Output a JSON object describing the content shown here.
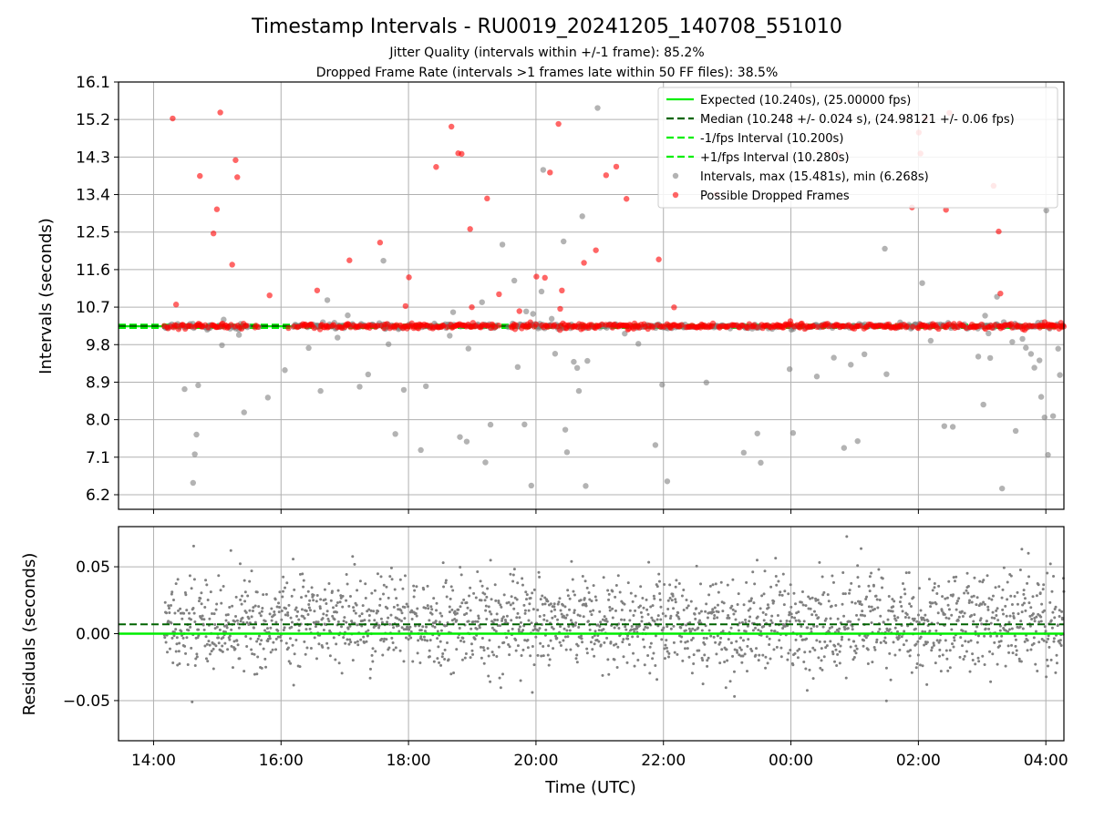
{
  "colors": {
    "expected": "#00ee00",
    "median": "#006400",
    "fps_band": "#00ee00",
    "intervals": "#808080",
    "dropped": "#ff0000",
    "residuals": "#808080",
    "grid": "#b0b0b0"
  },
  "chart_data": [
    {
      "type": "scatter",
      "title": "Timestamp Intervals - RU0019_20241205_140708_551010",
      "subtitle_lines": [
        "Jitter Quality (intervals within +/-1 frame): 85.2%",
        "Dropped Frame Rate (intervals >1 frames late within 50 FF files): 38.5%"
      ],
      "xlabel": "",
      "ylabel": "Intervals (seconds)",
      "xlim": [
        "13:27",
        "04:17"
      ],
      "ylim": [
        5.85,
        16.1
      ],
      "x_ticks": [
        "14:00",
        "16:00",
        "18:00",
        "20:00",
        "22:00",
        "00:00",
        "02:00",
        "04:00"
      ],
      "y_ticks": [
        "6.2",
        "7.1",
        "8.0",
        "8.9",
        "9.8",
        "10.7",
        "11.6",
        "12.5",
        "13.4",
        "14.3",
        "15.2",
        "16.1"
      ],
      "grid": true,
      "legend_position": "top-right",
      "reference_lines": [
        {
          "name": "Expected (10.240s), (25.00000 fps)",
          "value": 10.24,
          "style": "solid"
        },
        {
          "name": "Median (10.248 +/- 0.024 s), (24.98121 +/- 0.06 fps)",
          "value": 10.248,
          "style": "dashed"
        },
        {
          "name": "-1/fps Interval (10.200s)",
          "value": 10.2,
          "style": "dashed"
        },
        {
          "name": "+1/fps Interval (10.280s)",
          "value": 10.28,
          "style": "dashed"
        }
      ],
      "series": [
        {
          "name": "Intervals, max (15.481s), min (6.268s)",
          "marker": "circle"
        },
        {
          "name": "Possible Dropped Frames",
          "marker": "circle"
        }
      ],
      "data_range": {
        "start": "14:10",
        "end": "04:17"
      }
    },
    {
      "type": "scatter",
      "xlabel": "Time (UTC)",
      "ylabel": "Residuals (seconds)",
      "xlim": [
        "13:27",
        "04:17"
      ],
      "ylim": [
        -0.08,
        0.08
      ],
      "y_ticks": [
        "−0.05",
        "0.00",
        "0.05"
      ],
      "x_ticks": [
        "14:00",
        "16:00",
        "18:00",
        "20:00",
        "22:00",
        "00:00",
        "02:00",
        "04:00"
      ],
      "grid": true,
      "reference_lines": [
        {
          "value": 0.0,
          "style": "solid"
        },
        {
          "value": 0.007,
          "style": "dashed"
        }
      ]
    }
  ]
}
